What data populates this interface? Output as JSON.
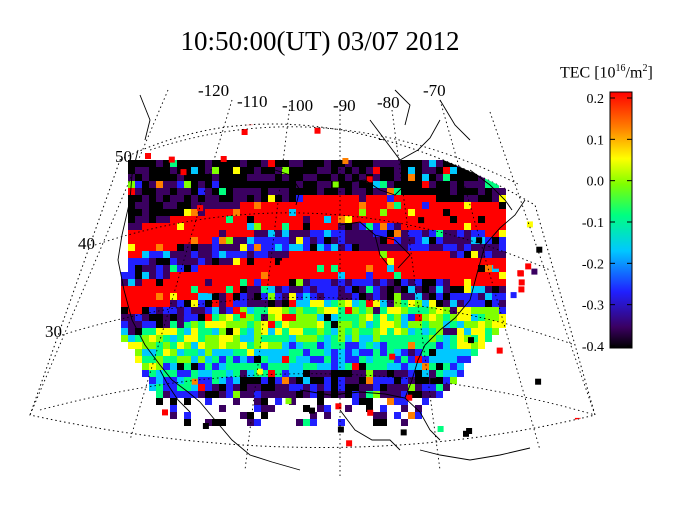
{
  "title": "10:50:00(UT)  03/07 2012",
  "map": {
    "lon_labels": [
      "-120",
      "-110",
      "-100",
      "-90",
      "-80",
      "-70"
    ],
    "lat_labels": [
      "50",
      "40",
      "30"
    ],
    "grid": "dotted",
    "projection": "conic"
  },
  "colorbar": {
    "title_prefix": "TEC [10",
    "title_exp": "16",
    "title_suffix": "/m",
    "title_exp2": "2",
    "title_end": "]",
    "min": -0.4,
    "max": 0.2,
    "tick_labels": [
      "0.2",
      "0.1",
      "0.0",
      "-0.1",
      "-0.2",
      "-0.3",
      "-0.4"
    ],
    "colors": [
      "#000000",
      "#3a0060",
      "#2020ff",
      "#00c8ff",
      "#00ff80",
      "#80ff00",
      "#ffff00",
      "#ff8000",
      "#ff0000"
    ]
  }
}
